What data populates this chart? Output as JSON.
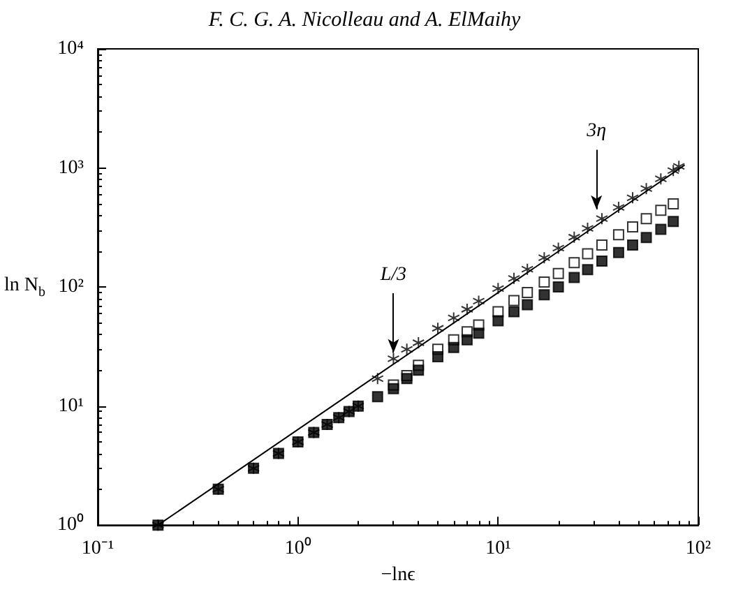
{
  "chart_data": {
    "type": "scatter",
    "title": "F. C. G. A. Nicolleau and A. ElMaihy",
    "xlabel": "−lnϵ",
    "ylabel": "ln N$_{b}$",
    "x": [
      0.2,
      0.4,
      0.6,
      0.8,
      1.0,
      1.2,
      1.4,
      1.6,
      1.8,
      2.0,
      2.5,
      3,
      3.5,
      4,
      5,
      6,
      7,
      8,
      10,
      12,
      14,
      17,
      20,
      24,
      28,
      33,
      40,
      47,
      55,
      65,
      75
    ],
    "series": [
      {
        "color": "#000000",
        "marker": "cross",
        "x": [
          0.2,
          0.4,
          0.6,
          0.8,
          1.0,
          1.2,
          1.4,
          1.6,
          1.8,
          2.0,
          2.5,
          3,
          3.5,
          4,
          5,
          6,
          7,
          8,
          10,
          12,
          14,
          17,
          20,
          24,
          28,
          33,
          40,
          47,
          55,
          65,
          75,
          80
        ],
        "values": [
          1,
          2,
          3,
          4,
          5,
          6,
          7,
          8,
          9,
          10,
          17,
          25,
          30,
          34,
          45,
          55,
          65,
          76,
          97,
          118,
          141,
          176,
          212,
          262,
          311,
          375,
          466,
          561,
          670,
          810,
          950,
          1030
        ]
      },
      {
        "color": "#ffffff",
        "marker": "square",
        "values": [
          null,
          null,
          null,
          null,
          null,
          null,
          null,
          null,
          null,
          null,
          null,
          15,
          18,
          22,
          30,
          36,
          42,
          48,
          62,
          77,
          90,
          110,
          130,
          160,
          190,
          225,
          275,
          320,
          375,
          440,
          500
        ]
      },
      {
        "color": "#000000",
        "marker": "square",
        "values": [
          1,
          2,
          3,
          4,
          5,
          6,
          7,
          8,
          9,
          10,
          12,
          14,
          17,
          20,
          26,
          31,
          36,
          41,
          52,
          62,
          71,
          86,
          100,
          120,
          140,
          165,
          195,
          225,
          260,
          305,
          355
        ]
      },
      {
        "type": "line",
        "color": "#000000",
        "marker": "none",
        "line_style": "solid",
        "x": [
          0.2,
          85
        ],
        "values": [
          1,
          1050
        ]
      }
    ],
    "annotations": [
      {
        "text": "L/3",
        "x": 3,
        "y": 28
      },
      {
        "text": "3η",
        "x": 31,
        "y": 450
      }
    ],
    "log": "xy",
    "xlim": [
      0.1,
      100
    ],
    "ylim": [
      1,
      10000
    ],
    "xticks": [
      {
        "value": 0.1,
        "label": "10⁻¹"
      },
      {
        "value": 1,
        "label": "10⁰"
      },
      {
        "value": 10,
        "label": "10¹"
      },
      {
        "value": 100,
        "label": "10²"
      }
    ],
    "yticks": [
      {
        "value": 1,
        "label": "10⁰"
      },
      {
        "value": 10,
        "label": "10¹"
      },
      {
        "value": 100,
        "label": "10²"
      },
      {
        "value": 1000,
        "label": "10³"
      },
      {
        "value": 10000,
        "label": "10⁴"
      }
    ],
    "grid": false
  }
}
